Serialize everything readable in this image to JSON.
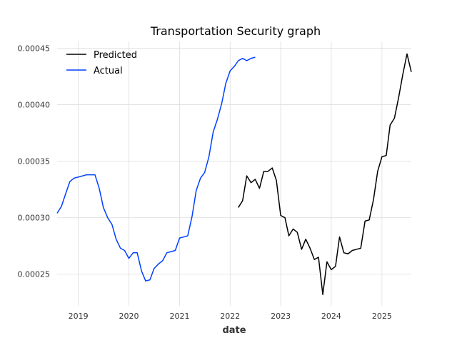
{
  "chart_data": {
    "type": "line",
    "title": "Transportation Security graph",
    "xlabel": "date",
    "ylabel": "",
    "xlim": [
      "2018-08-01",
      "2025-08-01"
    ],
    "ylim": [
      0.000222,
      0.000456
    ],
    "x_ticks": [
      "2019-01-01",
      "2020-01-01",
      "2021-01-01",
      "2022-01-01",
      "2023-01-01",
      "2024-01-01",
      "2025-01-01"
    ],
    "x_tick_labels": [
      "2019",
      "2020",
      "2021",
      "2022",
      "2023",
      "2024",
      "2025"
    ],
    "y_ticks": [
      0.00025,
      0.0003,
      0.00035,
      0.0004,
      0.00045
    ],
    "y_tick_labels": [
      "0.00025",
      "0.00030",
      "0.00035",
      "0.00040",
      "0.00045"
    ],
    "grid": true,
    "legend": "top-left",
    "series": [
      {
        "name": "Predicted",
        "color": "#000000",
        "x": [
          "2022-03-01",
          "2022-04-01",
          "2022-05-01",
          "2022-06-01",
          "2022-07-01",
          "2022-08-01",
          "2022-09-01",
          "2022-10-01",
          "2022-11-01",
          "2022-12-01",
          "2023-01-01",
          "2023-02-01",
          "2023-03-01",
          "2023-04-01",
          "2023-05-01",
          "2023-06-01",
          "2023-07-01",
          "2023-08-01",
          "2023-09-01",
          "2023-10-01",
          "2023-11-01",
          "2023-12-01",
          "2024-01-01",
          "2024-02-01",
          "2024-03-01",
          "2024-04-01",
          "2024-05-01",
          "2024-06-01",
          "2024-07-01",
          "2024-08-01",
          "2024-09-01",
          "2024-10-01",
          "2024-11-01",
          "2024-12-01",
          "2025-01-01",
          "2025-02-01",
          "2025-03-01",
          "2025-04-01",
          "2025-05-01",
          "2025-06-01",
          "2025-07-01",
          "2025-08-01"
        ],
        "y": [
          0.000309,
          0.000315,
          0.000337,
          0.000331,
          0.000334,
          0.000326,
          0.000341,
          0.000341,
          0.000344,
          0.000333,
          0.000302,
          0.0003,
          0.000284,
          0.00029,
          0.000287,
          0.000272,
          0.000281,
          0.000273,
          0.000263,
          0.000265,
          0.000232,
          0.000261,
          0.000254,
          0.000257,
          0.000283,
          0.000269,
          0.000268,
          0.000271,
          0.000272,
          0.000273,
          0.000297,
          0.000298,
          0.000316,
          0.000341,
          0.000354,
          0.000355,
          0.000382,
          0.000388,
          0.000406,
          0.000427,
          0.000445,
          0.000429
        ]
      },
      {
        "name": "Actual",
        "color": "#0040ff",
        "x": [
          "2018-08-01",
          "2018-09-01",
          "2018-10-01",
          "2018-11-01",
          "2018-12-01",
          "2019-01-01",
          "2019-02-01",
          "2019-03-01",
          "2019-04-01",
          "2019-05-01",
          "2019-06-01",
          "2019-07-01",
          "2019-08-01",
          "2019-09-01",
          "2019-10-01",
          "2019-11-01",
          "2019-12-01",
          "2020-01-01",
          "2020-02-01",
          "2020-03-01",
          "2020-04-01",
          "2020-05-01",
          "2020-06-01",
          "2020-07-01",
          "2020-08-01",
          "2020-09-01",
          "2020-10-01",
          "2020-11-01",
          "2020-12-01",
          "2021-01-01",
          "2021-02-01",
          "2021-03-01",
          "2021-04-01",
          "2021-05-01",
          "2021-06-01",
          "2021-07-01",
          "2021-08-01",
          "2021-09-01",
          "2021-10-01",
          "2021-11-01",
          "2021-12-01",
          "2022-01-01",
          "2022-02-01",
          "2022-03-01",
          "2022-04-01",
          "2022-05-01",
          "2022-06-01",
          "2022-07-01"
        ],
        "y": [
          0.000304,
          0.00031,
          0.000321,
          0.000332,
          0.000335,
          0.000336,
          0.000337,
          0.000338,
          0.000338,
          0.000338,
          0.000326,
          0.000309,
          0.0003,
          0.000294,
          0.000281,
          0.000273,
          0.000271,
          0.000264,
          0.000269,
          0.000269,
          0.000253,
          0.000244,
          0.000245,
          0.000255,
          0.000259,
          0.000262,
          0.000269,
          0.00027,
          0.000271,
          0.000282,
          0.000283,
          0.000284,
          0.000301,
          0.000324,
          0.000335,
          0.00034,
          0.000354,
          0.000376,
          0.000387,
          0.000401,
          0.000419,
          0.00043,
          0.000434,
          0.000439,
          0.000441,
          0.000439,
          0.000441,
          0.000442
        ]
      }
    ]
  }
}
